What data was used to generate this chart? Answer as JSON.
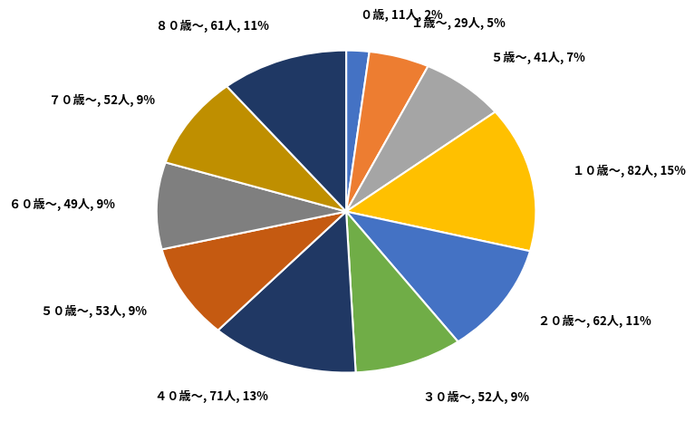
{
  "labels": [
    "０歳, 11人, 2%",
    "１歳～, 29人, 5%",
    "５歳～, 41人, 7%",
    "１０歳～, 82人, 15%",
    "２０歳～, 62人, 11%",
    "３０歳～, 52人, 9%",
    "４０歳～, 71人, 13%",
    "５０歳～, 53人, 9%",
    "６０歳～, 49人, 9%",
    "７０歳～, 52人, 9%",
    "８０歳～, 61人, 11%"
  ],
  "values": [
    11,
    29,
    41,
    82,
    62,
    52,
    71,
    53,
    49,
    52,
    61
  ],
  "colors": [
    "#4472C4",
    "#ED7D31",
    "#A5A5A5",
    "#FFC000",
    "#4472C4",
    "#70AD47",
    "#203864",
    "#C55A11",
    "#7F7F7F",
    "#BF8F00",
    "#1F3864"
  ],
  "label_fontsize": 9.5,
  "background_color": "#FFFFFF",
  "startangle": 90
}
